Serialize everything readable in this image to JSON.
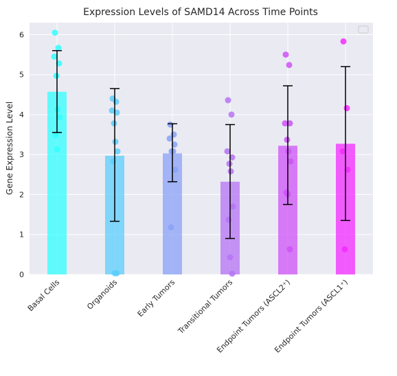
{
  "chart_data": {
    "type": "bar",
    "title": "Expression Levels of SAMD14 Across Time Points",
    "xlabel": "",
    "ylabel": "Gene Expression Level",
    "ylim": [
      0,
      6.3
    ],
    "yticks": [
      0,
      1,
      2,
      3,
      4,
      5,
      6
    ],
    "grid": true,
    "legend": "top-right (empty)",
    "categories": [
      "Basal Cells",
      "Organoids",
      "Early Tumors",
      "Transitional Tumors",
      "Endpoint Tumors (ASCL2⁺)",
      "Endpoint Tumors (ASCL1⁺)"
    ],
    "values": [
      4.57,
      2.97,
      3.03,
      2.32,
      3.22,
      3.27
    ],
    "error_bars": [
      {
        "low": 3.55,
        "high": 5.6
      },
      {
        "low": 1.33,
        "high": 4.65
      },
      {
        "low": 2.32,
        "high": 3.77
      },
      {
        "low": 0.9,
        "high": 3.75
      },
      {
        "low": 1.75,
        "high": 4.72
      },
      {
        "low": 1.35,
        "high": 5.2
      }
    ],
    "points": [
      [
        6.05,
        5.67,
        5.45,
        5.28,
        4.97,
        4.13,
        3.93,
        3.48,
        3.13
      ],
      [
        4.4,
        4.32,
        4.1,
        4.05,
        3.78,
        3.32,
        3.08,
        2.83,
        0.03,
        0.03
      ],
      [
        3.75,
        3.5,
        3.4,
        3.25,
        3.08,
        3.08,
        2.62,
        1.18
      ],
      [
        4.36,
        4.0,
        3.08,
        2.93,
        2.77,
        2.58,
        1.7,
        1.37,
        0.43,
        0.02
      ],
      [
        5.5,
        5.24,
        3.78,
        3.78,
        3.37,
        3.08,
        2.83,
        2.05,
        2.0,
        0.63
      ],
      [
        5.83,
        4.16,
        3.08,
        2.62,
        0.63
      ]
    ],
    "colors": [
      "#33FFFF",
      "#5CCEFC",
      "#8AA2F7",
      "#B673F4",
      "#CE53F7",
      "#F32BFF"
    ]
  }
}
